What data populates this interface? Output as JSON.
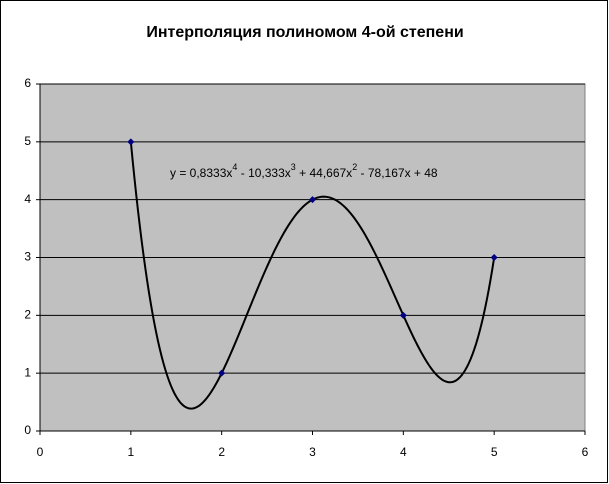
{
  "chart_data": {
    "type": "scatter",
    "title": "Интерполяция полиномом 4-ой степени",
    "x": [
      1,
      2,
      3,
      4,
      5
    ],
    "series": [
      {
        "color": "#000080",
        "values": [
          5,
          1,
          4,
          2,
          3
        ]
      }
    ],
    "trendline": {
      "type": "polynomial",
      "color": "#000000",
      "equation": [
        "y = 0,8333x",
        "4",
        " - 10,333x",
        "3",
        " + 44,667x",
        "2",
        " - 78,167x + 48"
      ]
    },
    "xlim": [
      0,
      6
    ],
    "xticks": [
      0,
      1,
      2,
      3,
      4,
      5,
      6
    ],
    "ylim": [
      0,
      6
    ],
    "yticks": [
      0,
      1,
      2,
      3,
      4,
      5,
      6
    ],
    "grid": true,
    "plot_background": "#c0c0c0"
  }
}
